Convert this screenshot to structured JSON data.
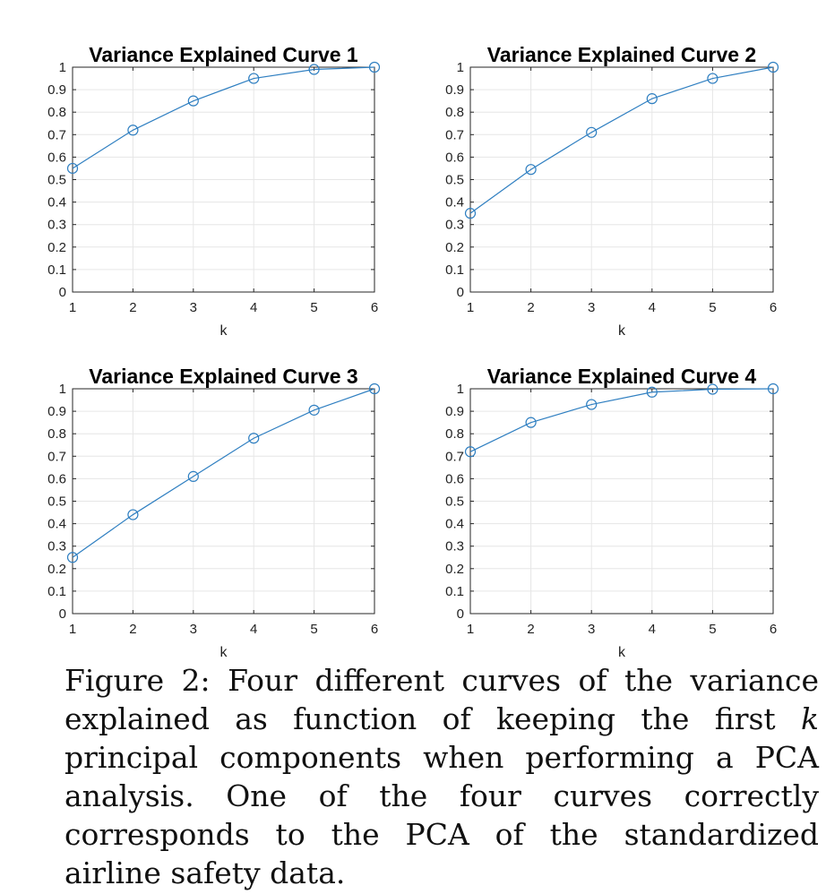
{
  "chart_data": [
    {
      "type": "line",
      "title": "Variance Explained Curve 1",
      "xlabel": "k",
      "ylabel": "",
      "x": [
        1,
        2,
        3,
        4,
        5,
        6
      ],
      "series": [
        {
          "values": [
            0.55,
            0.72,
            0.85,
            0.95,
            0.99,
            1.0
          ]
        }
      ],
      "xlim": [
        1,
        6
      ],
      "ylim": [
        0,
        1
      ],
      "xticks": [
        "1",
        "2",
        "3",
        "4",
        "5",
        "6"
      ],
      "yticks": [
        "0",
        "0.1",
        "0.2",
        "0.3",
        "0.4",
        "0.5",
        "0.6",
        "0.7",
        "0.8",
        "0.9",
        "1"
      ],
      "grid": true,
      "marker": "circle",
      "line_color": "#2f7fc1"
    },
    {
      "type": "line",
      "title": "Variance Explained Curve 2",
      "xlabel": "k",
      "ylabel": "",
      "x": [
        1,
        2,
        3,
        4,
        5,
        6
      ],
      "series": [
        {
          "values": [
            0.35,
            0.545,
            0.71,
            0.86,
            0.95,
            1.0
          ]
        }
      ],
      "xlim": [
        1,
        6
      ],
      "ylim": [
        0,
        1
      ],
      "xticks": [
        "1",
        "2",
        "3",
        "4",
        "5",
        "6"
      ],
      "yticks": [
        "0",
        "0.1",
        "0.2",
        "0.3",
        "0.4",
        "0.5",
        "0.6",
        "0.7",
        "0.8",
        "0.9",
        "1"
      ],
      "grid": true,
      "marker": "circle",
      "line_color": "#2f7fc1"
    },
    {
      "type": "line",
      "title": "Variance Explained Curve 3",
      "xlabel": "k",
      "ylabel": "",
      "x": [
        1,
        2,
        3,
        4,
        5,
        6
      ],
      "series": [
        {
          "values": [
            0.25,
            0.44,
            0.61,
            0.78,
            0.905,
            1.0
          ]
        }
      ],
      "xlim": [
        1,
        6
      ],
      "ylim": [
        0,
        1
      ],
      "xticks": [
        "1",
        "2",
        "3",
        "4",
        "5",
        "6"
      ],
      "yticks": [
        "0",
        "0.1",
        "0.2",
        "0.3",
        "0.4",
        "0.5",
        "0.6",
        "0.7",
        "0.8",
        "0.9",
        "1"
      ],
      "grid": true,
      "marker": "circle",
      "line_color": "#2f7fc1"
    },
    {
      "type": "line",
      "title": "Variance Explained Curve 4",
      "xlabel": "k",
      "ylabel": "",
      "x": [
        1,
        2,
        3,
        4,
        5,
        6
      ],
      "series": [
        {
          "values": [
            0.72,
            0.85,
            0.93,
            0.985,
            0.998,
            1.0
          ]
        }
      ],
      "xlim": [
        1,
        6
      ],
      "ylim": [
        0,
        1
      ],
      "xticks": [
        "1",
        "2",
        "3",
        "4",
        "5",
        "6"
      ],
      "yticks": [
        "0",
        "0.1",
        "0.2",
        "0.3",
        "0.4",
        "0.5",
        "0.6",
        "0.7",
        "0.8",
        "0.9",
        "1"
      ],
      "grid": true,
      "marker": "circle",
      "line_color": "#2f7fc1"
    }
  ],
  "caption": {
    "prefix": "Figure 2: Four different curves of the variance explained as function of keeping the first ",
    "variable": "k",
    "suffix": " principal components when performing a PCA analysis. One of the four curves correctly corresponds to the PCA of the standardized airline safety data."
  }
}
